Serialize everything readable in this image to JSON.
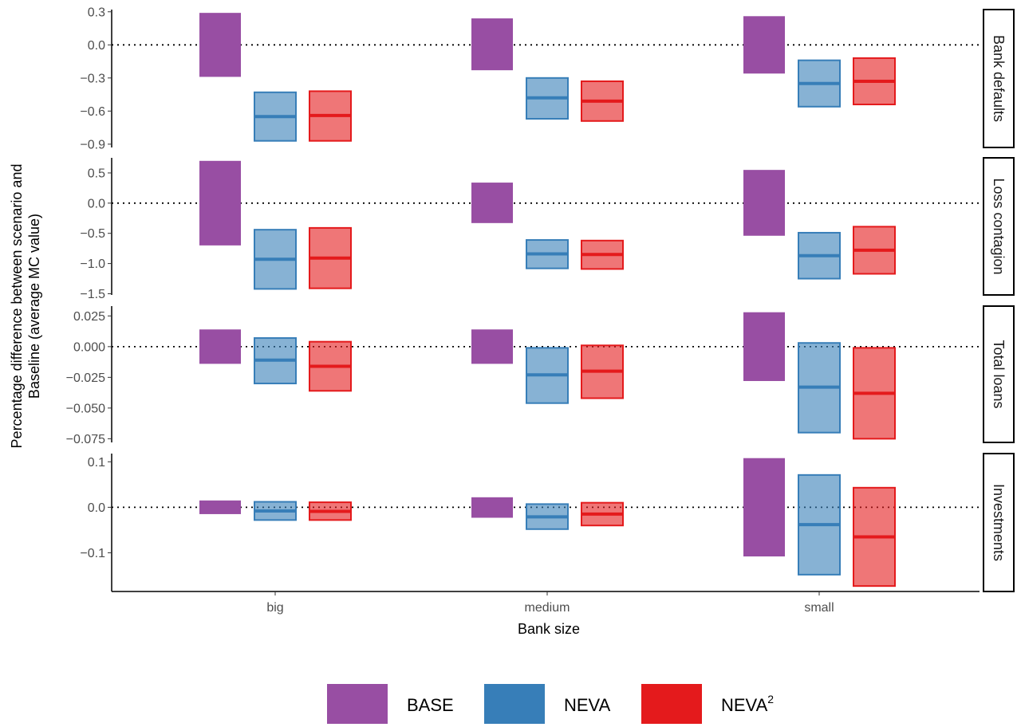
{
  "chart_data": {
    "type": "crossbar",
    "xlabel": "Bank size",
    "ylabel_lines": [
      "Percentage difference between scenario and",
      "Baseline (average MC value)"
    ],
    "categories": [
      "big",
      "medium",
      "small"
    ],
    "reference_line": 0,
    "legend": {
      "placement": "bottom",
      "entries": [
        {
          "key": "BASE",
          "label": "BASE",
          "sup": "",
          "color": "#984EA3"
        },
        {
          "key": "NEVA",
          "label": "NEVA",
          "sup": "",
          "color": "#377EB8"
        },
        {
          "key": "NEVA2",
          "label": "NEVA",
          "sup": "2",
          "color": "#E41A1C"
        }
      ]
    },
    "facets": [
      {
        "label": "Bank defaults",
        "ylim": [
          -0.93,
          0.32
        ],
        "yticks": [
          0.3,
          0.0,
          -0.3,
          -0.6,
          -0.9
        ],
        "ytick_labels": [
          "0.3",
          "0.0",
          "−0.3",
          "−0.6",
          "−0.9"
        ],
        "series": {
          "BASE": [
            {
              "ymin": -0.29,
              "ymax": 0.29
            },
            {
              "ymin": -0.23,
              "ymax": 0.24
            },
            {
              "ymin": -0.26,
              "ymax": 0.26
            }
          ],
          "NEVA": [
            {
              "ymin": -0.87,
              "mid": -0.65,
              "ymax": -0.43
            },
            {
              "ymin": -0.67,
              "mid": -0.48,
              "ymax": -0.3
            },
            {
              "ymin": -0.56,
              "mid": -0.35,
              "ymax": -0.14
            }
          ],
          "NEVA2": [
            {
              "ymin": -0.87,
              "mid": -0.64,
              "ymax": -0.42
            },
            {
              "ymin": -0.69,
              "mid": -0.51,
              "ymax": -0.33
            },
            {
              "ymin": -0.54,
              "mid": -0.33,
              "ymax": -0.12
            }
          ]
        }
      },
      {
        "label": "Loss contagion",
        "ylim": [
          -1.52,
          0.75
        ],
        "yticks": [
          0.5,
          0.0,
          -0.5,
          -1.0,
          -1.5
        ],
        "ytick_labels": [
          "0.5",
          "0.0",
          "−0.5",
          "−1.0",
          "−1.5"
        ],
        "series": {
          "BASE": [
            {
              "ymin": -0.7,
              "ymax": 0.7
            },
            {
              "ymin": -0.33,
              "ymax": 0.34
            },
            {
              "ymin": -0.54,
              "ymax": 0.55
            }
          ],
          "NEVA": [
            {
              "ymin": -1.42,
              "mid": -0.93,
              "ymax": -0.44
            },
            {
              "ymin": -1.08,
              "mid": -0.84,
              "ymax": -0.61
            },
            {
              "ymin": -1.25,
              "mid": -0.87,
              "ymax": -0.49
            }
          ],
          "NEVA2": [
            {
              "ymin": -1.41,
              "mid": -0.91,
              "ymax": -0.41
            },
            {
              "ymin": -1.09,
              "mid": -0.85,
              "ymax": -0.62
            },
            {
              "ymin": -1.17,
              "mid": -0.78,
              "ymax": -0.39
            }
          ]
        }
      },
      {
        "label": "Total loans",
        "ylim": [
          -0.078,
          0.033
        ],
        "yticks": [
          0.025,
          0.0,
          -0.025,
          -0.05,
          -0.075
        ],
        "ytick_labels": [
          "0.025",
          "0.000",
          "−0.025",
          "−0.050",
          "−0.075"
        ],
        "series": {
          "BASE": [
            {
              "ymin": -0.014,
              "ymax": 0.014
            },
            {
              "ymin": -0.014,
              "ymax": 0.014
            },
            {
              "ymin": -0.028,
              "ymax": 0.028
            }
          ],
          "NEVA": [
            {
              "ymin": -0.03,
              "mid": -0.011,
              "ymax": 0.007
            },
            {
              "ymin": -0.046,
              "mid": -0.023,
              "ymax": -0.001
            },
            {
              "ymin": -0.07,
              "mid": -0.033,
              "ymax": 0.003
            }
          ],
          "NEVA2": [
            {
              "ymin": -0.036,
              "mid": -0.016,
              "ymax": 0.004
            },
            {
              "ymin": -0.042,
              "mid": -0.02,
              "ymax": 0.001
            },
            {
              "ymin": -0.075,
              "mid": -0.038,
              "ymax": -0.001
            }
          ]
        }
      },
      {
        "label": "Investments",
        "ylim": [
          -0.185,
          0.118
        ],
        "yticks": [
          0.1,
          0.0,
          -0.1
        ],
        "ytick_labels": [
          "0.1",
          "0.0",
          "−0.1"
        ],
        "series": {
          "BASE": [
            {
              "ymin": -0.015,
              "ymax": 0.015
            },
            {
              "ymin": -0.023,
              "ymax": 0.022
            },
            {
              "ymin": -0.108,
              "ymax": 0.108
            }
          ],
          "NEVA": [
            {
              "ymin": -0.028,
              "mid": -0.008,
              "ymax": 0.012
            },
            {
              "ymin": -0.048,
              "mid": -0.021,
              "ymax": 0.007
            },
            {
              "ymin": -0.148,
              "mid": -0.038,
              "ymax": 0.071
            }
          ],
          "NEVA2": [
            {
              "ymin": -0.028,
              "mid": -0.009,
              "ymax": 0.011
            },
            {
              "ymin": -0.04,
              "mid": -0.015,
              "ymax": 0.01
            },
            {
              "ymin": -0.173,
              "mid": -0.065,
              "ymax": 0.043
            }
          ]
        }
      }
    ]
  }
}
